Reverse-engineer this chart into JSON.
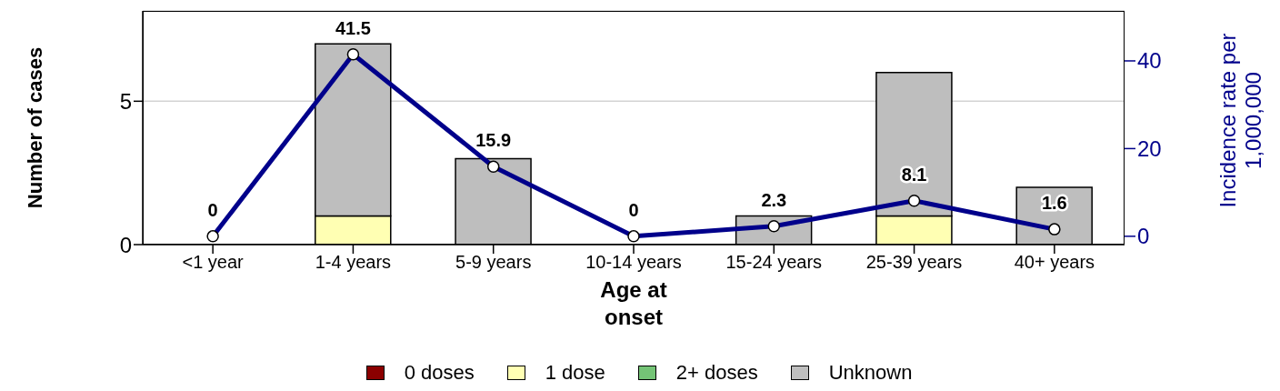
{
  "chart_data": {
    "type": "bar",
    "xlabel": "Age at onset",
    "ylabel": "Number of cases",
    "y2label": "Incidence rate per 1,000,000",
    "categories": [
      "<1 year",
      "1-4 years",
      "5-9 years",
      "10-14 years",
      "15-24 years",
      "25-39 years",
      "40+ years"
    ],
    "stacked": true,
    "series": [
      {
        "name": "0 doses",
        "color": "#8b0000",
        "values": [
          0,
          0,
          0,
          0,
          0,
          0,
          0
        ]
      },
      {
        "name": "1 dose",
        "color": "#ffffb3",
        "values": [
          0,
          1,
          0,
          0,
          0,
          1,
          0
        ]
      },
      {
        "name": "2+ doses",
        "color": "#74c476",
        "values": [
          0,
          0,
          0,
          0,
          0,
          0,
          0
        ]
      },
      {
        "name": "Unknown",
        "color": "#bebebe",
        "values": [
          0,
          6,
          3,
          0,
          1,
          5,
          2
        ]
      },
      {
        "type": "line",
        "axis": "y2",
        "color": "#00008b",
        "values": [
          0,
          41.5,
          15.9,
          0,
          2.3,
          8.1,
          1.6
        ],
        "data_labels": true,
        "marker": "circle"
      }
    ],
    "ylim": [
      0,
      8.15
    ],
    "yticks": [
      0,
      5
    ],
    "y2lim": [
      -1.9,
      51.4
    ],
    "y2ticks": [
      0,
      20,
      40
    ],
    "grid": "y",
    "legend": "bottom"
  }
}
